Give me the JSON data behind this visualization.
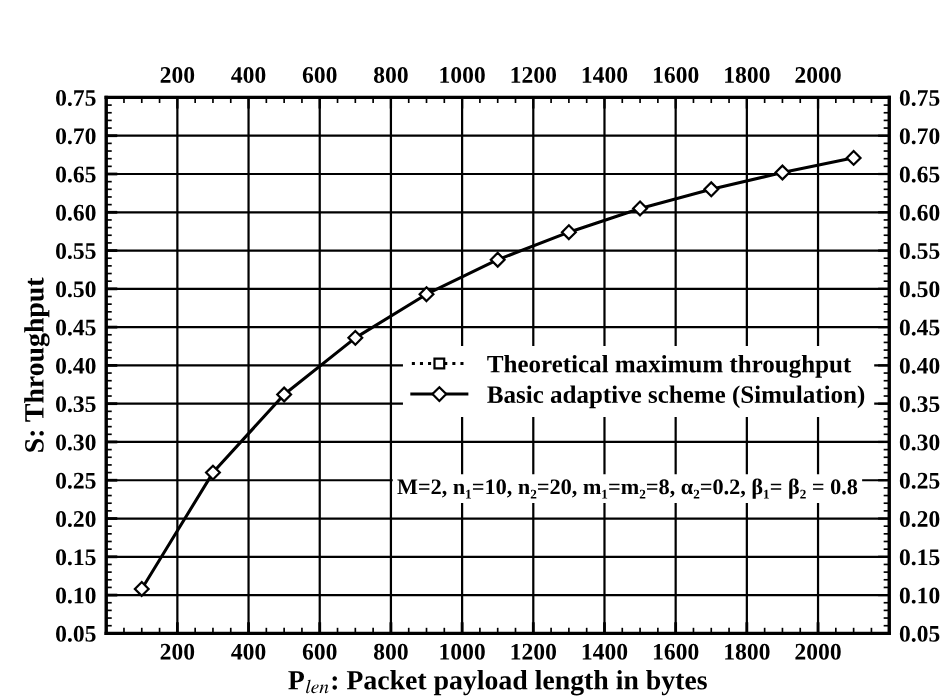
{
  "chart_data": {
    "type": "line",
    "xlabel": "P$_{len}$: Packet payload length in bytes",
    "ylabel": "S: Throughput",
    "x": [
      100,
      300,
      500,
      700,
      900,
      1100,
      1300,
      1500,
      1700,
      1900,
      2100
    ],
    "series": [
      {
        "name": "Theoretical maximum throughput",
        "color": "#000000",
        "marker": "square",
        "line_style": "dotted",
        "values": [
          null,
          null,
          null,
          null,
          null,
          null,
          null,
          null,
          null,
          null,
          null
        ]
      },
      {
        "name": "Basic adaptive scheme (Simulation)",
        "color": "#000000",
        "marker": "diamond",
        "line_style": "solid",
        "values": [
          0.108,
          0.26,
          0.362,
          0.436,
          0.493,
          0.538,
          0.574,
          0.605,
          0.63,
          0.652,
          0.671
        ]
      }
    ],
    "xlim": [
      0,
      2200
    ],
    "xticks": [
      200,
      400,
      600,
      800,
      1000,
      1200,
      1400,
      1600,
      1800,
      2000
    ],
    "x2lim": [
      0,
      2200
    ],
    "x2ticks": [
      200,
      400,
      600,
      800,
      1000,
      1200,
      1400,
      1600,
      1800,
      2000
    ],
    "ylim": [
      0.05,
      0.75
    ],
    "yticks": [
      {
        "value": 0.05,
        "label": "0.05"
      },
      {
        "value": 0.1,
        "label": "0.10"
      },
      {
        "value": 0.15,
        "label": "0.15"
      },
      {
        "value": 0.2,
        "label": "0.20"
      },
      {
        "value": 0.25,
        "label": "0.25"
      },
      {
        "value": 0.3,
        "label": "0.30"
      },
      {
        "value": 0.35,
        "label": "0.35"
      },
      {
        "value": 0.4,
        "label": "0.40"
      },
      {
        "value": 0.45,
        "label": "0.45"
      },
      {
        "value": 0.5,
        "label": "0.50"
      },
      {
        "value": 0.55,
        "label": "0.55"
      },
      {
        "value": 0.6,
        "label": "0.60"
      },
      {
        "value": 0.65,
        "label": "0.65"
      },
      {
        "value": 0.7,
        "label": "0.70"
      },
      {
        "value": 0.75,
        "label": "0.75"
      }
    ],
    "y2lim": [
      0.05,
      0.75
    ],
    "y2ticks": [
      {
        "value": 0.05,
        "label": "0.05"
      },
      {
        "value": 0.1,
        "label": "0.10"
      },
      {
        "value": 0.15,
        "label": "0.15"
      },
      {
        "value": 0.2,
        "label": "0.20"
      },
      {
        "value": 0.25,
        "label": "0.25"
      },
      {
        "value": 0.3,
        "label": "0.30"
      },
      {
        "value": 0.35,
        "label": "0.35"
      },
      {
        "value": 0.4,
        "label": "0.40"
      },
      {
        "value": 0.45,
        "label": "0.45"
      },
      {
        "value": 0.5,
        "label": "0.50"
      },
      {
        "value": 0.55,
        "label": "0.55"
      },
      {
        "value": 0.6,
        "label": "0.60"
      },
      {
        "value": 0.65,
        "label": "0.65"
      },
      {
        "value": 0.7,
        "label": "0.70"
      },
      {
        "value": 0.75,
        "label": "0.75"
      }
    ],
    "grid": true,
    "legend": "right",
    "annotations": [
      "M=2, n₁=10, n₂=20, m₁=m₂=8, α₂=0.2, β₁= β₂ = 0.8"
    ]
  }
}
